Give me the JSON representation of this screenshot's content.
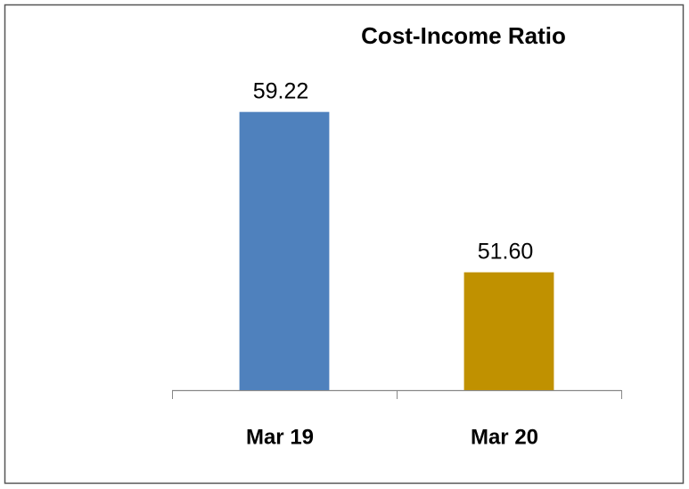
{
  "chart_data": {
    "type": "bar",
    "title": "Cost-Income Ratio",
    "categories": [
      "Mar 19",
      "Mar 20"
    ],
    "values": [
      59.22,
      51.6
    ],
    "value_labels": [
      "59.22",
      "51.60"
    ],
    "colors": [
      "#4f81bd",
      "#c09100"
    ],
    "ylim": [
      46,
      62
    ],
    "grid": false
  }
}
